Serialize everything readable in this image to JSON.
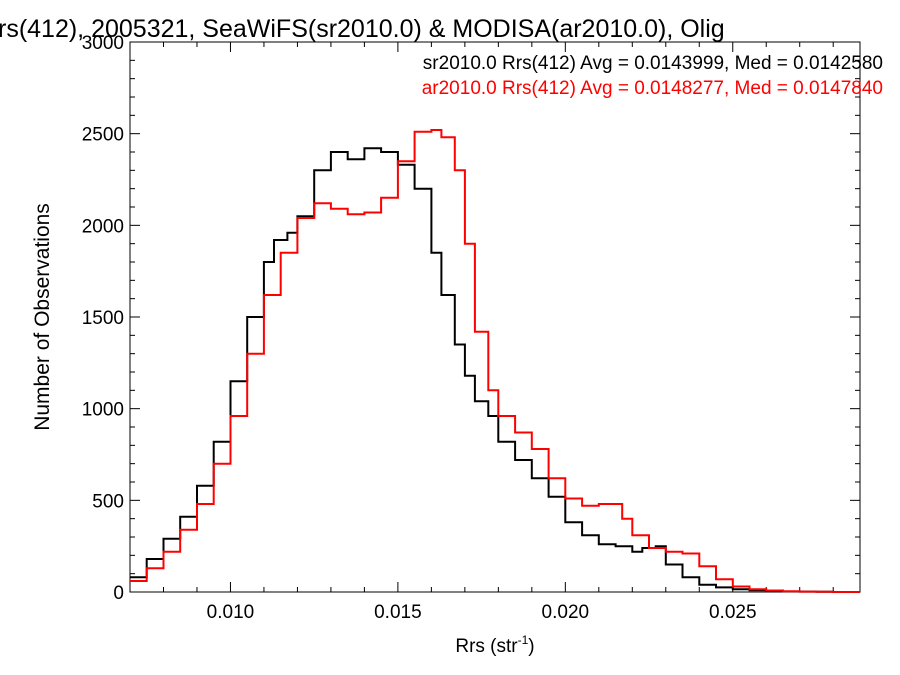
{
  "chart_data": {
    "type": "line",
    "title": "rs(412), 2005321, SeaWiFS(sr2010.0) & MODISA(ar2010.0), Olig",
    "xlabel_main": "Rrs (str",
    "xlabel_sup": "-1",
    "xlabel_tail": ")",
    "ylabel": "Number of Observations",
    "xlim": [
      0.007,
      0.0288
    ],
    "ylim": [
      0,
      3000
    ],
    "x_ticks": [
      0.01,
      0.015,
      0.02,
      0.025
    ],
    "x_tick_labels": [
      "0.010",
      "0.015",
      "0.020",
      "0.025"
    ],
    "y_ticks": [
      0,
      500,
      1000,
      1500,
      2000,
      2500,
      3000
    ],
    "y_tick_labels": [
      "0",
      "500",
      "1000",
      "1500",
      "2000",
      "2500",
      "3000"
    ],
    "legend_position": "top-right",
    "series": [
      {
        "name": "sr2010.0 Rrs(412) Avg = 0.0143999, Med = 0.0142580",
        "color": "#000000",
        "x": [
          0.007,
          0.0075,
          0.008,
          0.0085,
          0.009,
          0.0095,
          0.01,
          0.0105,
          0.011,
          0.0113,
          0.0117,
          0.012,
          0.0125,
          0.013,
          0.0135,
          0.014,
          0.0145,
          0.015,
          0.0155,
          0.016,
          0.0163,
          0.0167,
          0.017,
          0.0173,
          0.0177,
          0.018,
          0.0185,
          0.019,
          0.0195,
          0.02,
          0.0205,
          0.021,
          0.0215,
          0.022,
          0.0223,
          0.0227,
          0.023,
          0.0235,
          0.024,
          0.0245,
          0.025,
          0.0255,
          0.026,
          0.0265,
          0.027,
          0.0275,
          0.028,
          0.0288
        ],
        "values": [
          80,
          180,
          290,
          410,
          580,
          820,
          1150,
          1500,
          1800,
          1920,
          1960,
          2050,
          2300,
          2400,
          2360,
          2420,
          2400,
          2330,
          2200,
          1850,
          1620,
          1350,
          1180,
          1040,
          960,
          820,
          720,
          620,
          520,
          380,
          310,
          260,
          250,
          220,
          240,
          250,
          150,
          80,
          40,
          25,
          15,
          10,
          5,
          3,
          2,
          1,
          0,
          0
        ]
      },
      {
        "name": "ar2010.0 Rrs(412) Avg = 0.0148277, Med = 0.0147840",
        "color": "#ff0000",
        "x": [
          0.007,
          0.0075,
          0.008,
          0.0085,
          0.009,
          0.0095,
          0.01,
          0.0105,
          0.011,
          0.0115,
          0.012,
          0.0125,
          0.013,
          0.0135,
          0.014,
          0.0145,
          0.015,
          0.0155,
          0.016,
          0.0163,
          0.0167,
          0.017,
          0.0173,
          0.0177,
          0.018,
          0.0185,
          0.019,
          0.0195,
          0.02,
          0.0205,
          0.021,
          0.0213,
          0.0217,
          0.022,
          0.0225,
          0.023,
          0.0235,
          0.024,
          0.0245,
          0.025,
          0.0255,
          0.026,
          0.0265,
          0.027,
          0.0275,
          0.028,
          0.0288
        ],
        "values": [
          60,
          130,
          220,
          340,
          480,
          700,
          960,
          1300,
          1620,
          1850,
          2040,
          2120,
          2090,
          2060,
          2070,
          2150,
          2350,
          2510,
          2520,
          2480,
          2300,
          1900,
          1420,
          1100,
          960,
          870,
          780,
          620,
          510,
          470,
          480,
          480,
          400,
          310,
          240,
          220,
          210,
          140,
          70,
          30,
          15,
          8,
          4,
          2,
          1,
          0,
          0
        ]
      }
    ]
  }
}
